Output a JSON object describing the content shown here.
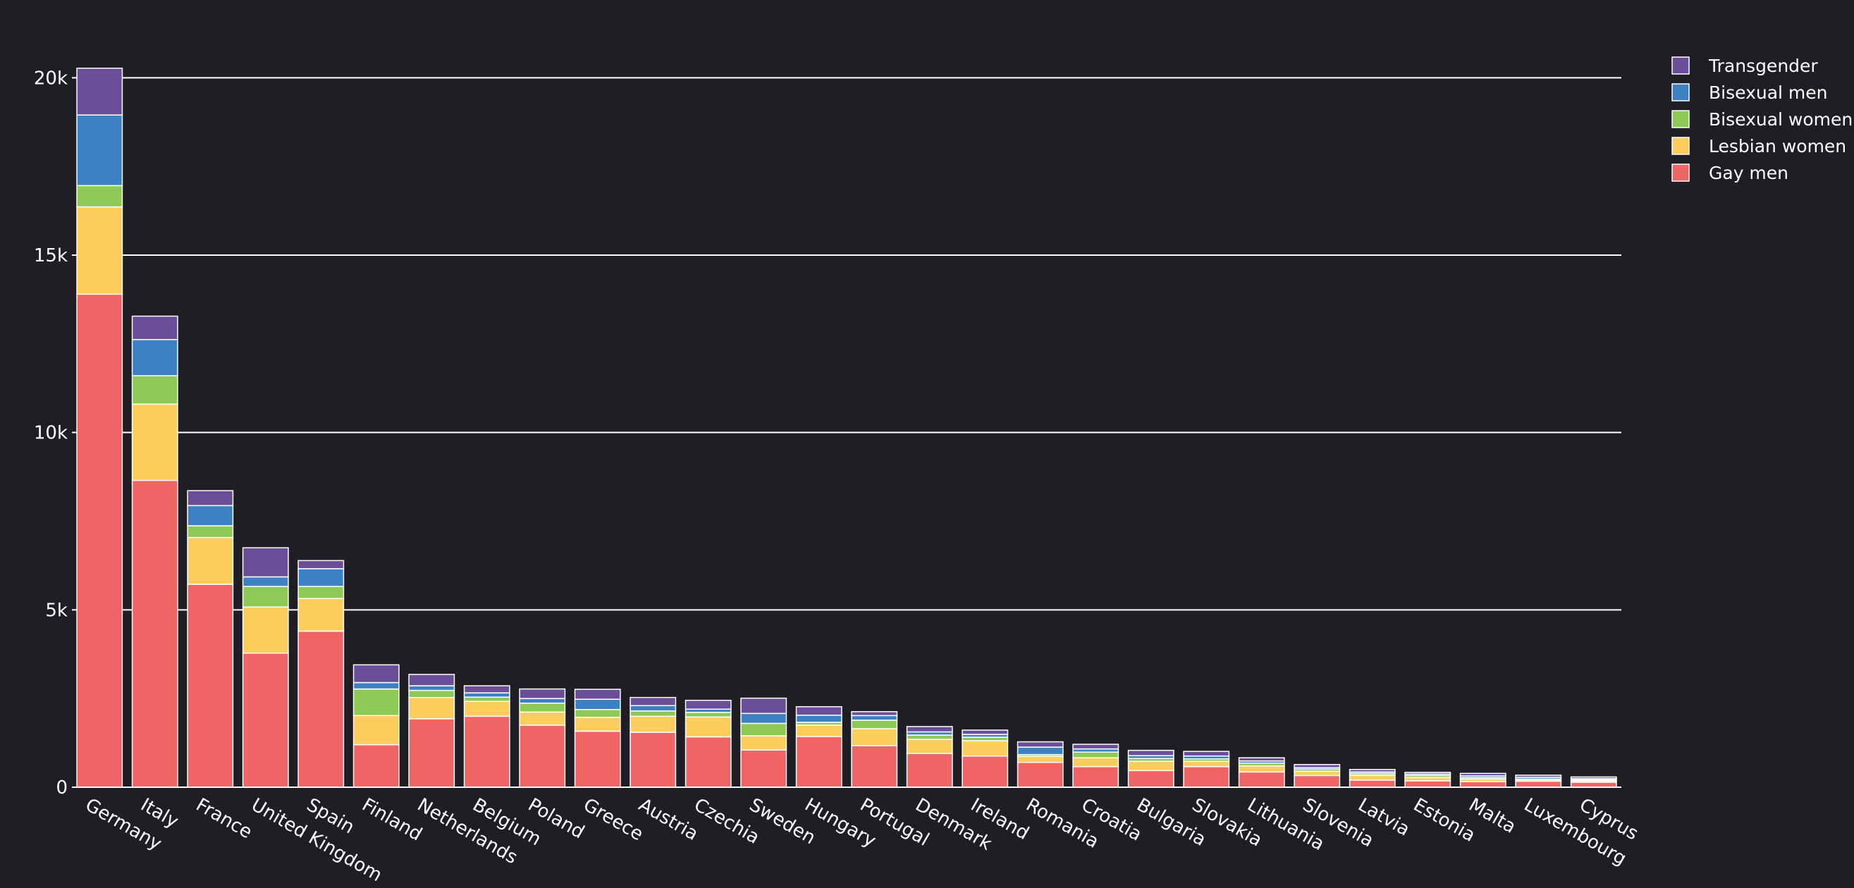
{
  "chart_data": {
    "type": "bar",
    "stacked": true,
    "title": "",
    "xlabel": "",
    "ylabel": "",
    "ylim": [
      0,
      21000
    ],
    "y_ticks": [
      {
        "value": 0,
        "label": "0"
      },
      {
        "value": 5000,
        "label": "5k"
      },
      {
        "value": 10000,
        "label": "10k"
      },
      {
        "value": 15000,
        "label": "15k"
      },
      {
        "value": 20000,
        "label": "20k"
      }
    ],
    "grid": "horizontal",
    "legend_position": "top-right",
    "legend_order": [
      "Transgender",
      "Bisexual men",
      "Bisexual women",
      "Lesbian women",
      "Gay men"
    ],
    "categories": [
      "Germany",
      "Italy",
      "France",
      "United Kingdom",
      "Spain",
      "Finland",
      "Netherlands",
      "Belgium",
      "Poland",
      "Greece",
      "Austria",
      "Czechia",
      "Sweden",
      "Hungary",
      "Portugal",
      "Denmark",
      "Ireland",
      "Romania",
      "Croatia",
      "Bulgaria",
      "Slovakia",
      "Lithuania",
      "Slovenia",
      "Latvia",
      "Estonia",
      "Malta",
      "Luxembourg",
      "Cyprus"
    ],
    "series": [
      {
        "name": "Gay men",
        "color": "#ef6566",
        "values": [
          13900,
          8650,
          5720,
          3780,
          4400,
          1200,
          1930,
          2000,
          1750,
          1580,
          1550,
          1420,
          1050,
          1430,
          1170,
          950,
          880,
          700,
          580,
          470,
          580,
          430,
          330,
          200,
          180,
          160,
          170,
          140
        ]
      },
      {
        "name": "Lesbian women",
        "color": "#fbcd5d",
        "values": [
          2460,
          2150,
          1320,
          1300,
          920,
          820,
          600,
          420,
          370,
          390,
          450,
          560,
          400,
          320,
          480,
          400,
          430,
          170,
          250,
          260,
          150,
          170,
          120,
          140,
          90,
          70,
          40,
          40
        ]
      },
      {
        "name": "Bisexual women",
        "color": "#8fc955",
        "values": [
          600,
          800,
          330,
          580,
          340,
          750,
          200,
          120,
          250,
          220,
          150,
          130,
          350,
          80,
          240,
          120,
          100,
          50,
          160,
          80,
          70,
          80,
          60,
          50,
          60,
          40,
          20,
          30
        ]
      },
      {
        "name": "Bisexual men",
        "color": "#3d80c3",
        "values": [
          1990,
          1020,
          570,
          270,
          500,
          180,
          130,
          120,
          130,
          290,
          150,
          90,
          280,
          200,
          130,
          90,
          80,
          210,
          90,
          80,
          80,
          60,
          40,
          40,
          40,
          50,
          50,
          30
        ]
      },
      {
        "name": "Transgender",
        "color": "#6a4f98",
        "values": [
          1320,
          660,
          420,
          820,
          230,
          500,
          320,
          200,
          270,
          280,
          230,
          250,
          430,
          240,
          110,
          150,
          120,
          150,
          130,
          150,
          130,
          90,
          90,
          70,
          50,
          70,
          60,
          50
        ]
      }
    ]
  }
}
